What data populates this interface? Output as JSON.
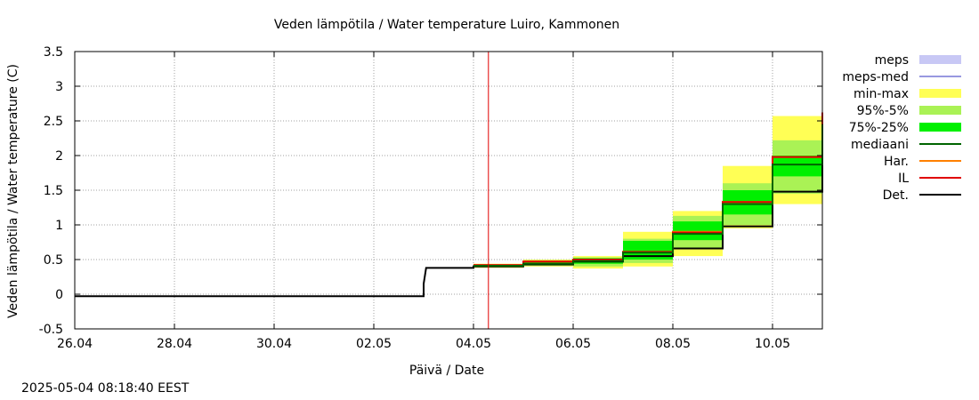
{
  "chart_data": {
    "type": "line",
    "title": "Veden lämpötila / Water temperature Luiro, Kammonen",
    "xlabel": "Päivä / Date",
    "ylabel": "Veden lämpötila / Water temperature (C)",
    "x_unit": "days since 26.04",
    "xlim": [
      0,
      15
    ],
    "ylim": [
      -0.5,
      3.5
    ],
    "grid": true,
    "legend_position": "right",
    "x_ticks": [
      {
        "value": 0,
        "label": "26.04"
      },
      {
        "value": 2,
        "label": "28.04"
      },
      {
        "value": 4,
        "label": "30.04"
      },
      {
        "value": 6,
        "label": "02.05"
      },
      {
        "value": 8,
        "label": "04.05"
      },
      {
        "value": 10,
        "label": "06.05"
      },
      {
        "value": 12,
        "label": "08.05"
      },
      {
        "value": 14,
        "label": "10.05"
      }
    ],
    "y_ticks": [
      {
        "value": -0.5,
        "label": "-0.5"
      },
      {
        "value": 0,
        "label": "0"
      },
      {
        "value": 0.5,
        "label": "0.5"
      },
      {
        "value": 1,
        "label": "1"
      },
      {
        "value": 1.5,
        "label": "1.5"
      },
      {
        "value": 2,
        "label": "2"
      },
      {
        "value": 2.5,
        "label": "2.5"
      },
      {
        "value": 3,
        "label": "3"
      },
      {
        "value": 3.5,
        "label": "3.5"
      }
    ],
    "now_marker": 8.3,
    "series": [
      {
        "name": "Det.",
        "color": "#000000",
        "width": 2,
        "type": "line",
        "points": [
          [
            0,
            -0.03
          ],
          [
            7,
            -0.03
          ],
          [
            7,
            0.15
          ],
          [
            7.05,
            0.38
          ],
          [
            8,
            0.38
          ],
          [
            8,
            0.4
          ],
          [
            9,
            0.4
          ],
          [
            9,
            0.43
          ],
          [
            10,
            0.43
          ],
          [
            10,
            0.47
          ],
          [
            11,
            0.47
          ],
          [
            11,
            0.55
          ],
          [
            12,
            0.55
          ],
          [
            12,
            0.66
          ],
          [
            13,
            0.66
          ],
          [
            13,
            0.98
          ],
          [
            14,
            0.98
          ],
          [
            14,
            1.48
          ],
          [
            15,
            1.48
          ],
          [
            15,
            2.0
          ]
        ]
      },
      {
        "name": "Har.",
        "color": "#ff8000",
        "width": 2,
        "type": "line",
        "points": [
          [
            8,
            0.42
          ],
          [
            9,
            0.42
          ],
          [
            9,
            0.47
          ],
          [
            10,
            0.47
          ],
          [
            10,
            0.5
          ],
          [
            11,
            0.5
          ],
          [
            11,
            0.61
          ],
          [
            12,
            0.61
          ],
          [
            12,
            0.9
          ],
          [
            13,
            0.9
          ],
          [
            13,
            1.33
          ],
          [
            14,
            1.33
          ],
          [
            14,
            1.98
          ],
          [
            15,
            1.98
          ],
          [
            15,
            2.62
          ]
        ]
      },
      {
        "name": "IL",
        "color": "#e00000",
        "width": 2,
        "type": "line",
        "points": [
          [
            8,
            0.42
          ],
          [
            9,
            0.42
          ],
          [
            9,
            0.47
          ],
          [
            10,
            0.47
          ],
          [
            10,
            0.5
          ],
          [
            11,
            0.5
          ],
          [
            11,
            0.61
          ],
          [
            12,
            0.61
          ],
          [
            12,
            0.89
          ],
          [
            13,
            0.89
          ],
          [
            13,
            1.33
          ],
          [
            14,
            1.33
          ],
          [
            14,
            1.98
          ],
          [
            15,
            1.98
          ],
          [
            15,
            2.62
          ]
        ]
      },
      {
        "name": "mediaani",
        "color": "#006400",
        "width": 2,
        "type": "line",
        "points": [
          [
            8,
            0.41
          ],
          [
            9,
            0.41
          ],
          [
            9,
            0.44
          ],
          [
            10,
            0.44
          ],
          [
            10,
            0.48
          ],
          [
            11,
            0.48
          ],
          [
            11,
            0.6
          ],
          [
            12,
            0.6
          ],
          [
            12,
            0.87
          ],
          [
            13,
            0.87
          ],
          [
            13,
            1.3
          ],
          [
            14,
            1.3
          ],
          [
            14,
            1.87
          ],
          [
            15,
            1.87
          ],
          [
            15,
            2.45
          ]
        ]
      },
      {
        "name": "meps-med",
        "color": "#3030c0",
        "width": 1,
        "type": "line",
        "points": []
      },
      {
        "name": "meps",
        "color": "#c8c8f5",
        "type": "band",
        "bands": []
      },
      {
        "name": "min-max",
        "color": "#ffff55",
        "type": "band",
        "bands": [
          [
            8,
            9,
            0.38,
            0.44
          ],
          [
            9,
            10,
            0.4,
            0.5
          ],
          [
            10,
            11,
            0.37,
            0.55
          ],
          [
            11,
            12,
            0.4,
            0.9
          ],
          [
            12,
            13,
            0.55,
            1.2
          ],
          [
            13,
            14,
            0.95,
            1.85
          ],
          [
            14,
            15,
            1.3,
            2.57
          ]
        ]
      },
      {
        "name": "95%-5%",
        "color": "#aaf255",
        "type": "band",
        "bands": [
          [
            8,
            9,
            0.39,
            0.43
          ],
          [
            9,
            10,
            0.41,
            0.49
          ],
          [
            10,
            11,
            0.4,
            0.53
          ],
          [
            11,
            12,
            0.45,
            0.8
          ],
          [
            12,
            13,
            0.65,
            1.13
          ],
          [
            13,
            14,
            1.0,
            1.6
          ],
          [
            14,
            15,
            1.45,
            2.22
          ]
        ]
      },
      {
        "name": "75%-25%",
        "color": "#00f000",
        "type": "band",
        "bands": [
          [
            8,
            9,
            0.4,
            0.42
          ],
          [
            9,
            10,
            0.42,
            0.47
          ],
          [
            10,
            11,
            0.44,
            0.52
          ],
          [
            11,
            12,
            0.5,
            0.77
          ],
          [
            12,
            13,
            0.78,
            1.05
          ],
          [
            13,
            14,
            1.15,
            1.5
          ],
          [
            14,
            15,
            1.7,
            2.0
          ]
        ]
      }
    ],
    "legend": [
      {
        "label": "meps",
        "color": "#c8c8f5",
        "kind": "band"
      },
      {
        "label": "meps-med",
        "color": "#3030c0",
        "kind": "line"
      },
      {
        "label": "min-max",
        "color": "#ffff55",
        "kind": "band"
      },
      {
        "label": "95%-5%",
        "color": "#aaf255",
        "kind": "band"
      },
      {
        "label": "75%-25%",
        "color": "#00f000",
        "kind": "band"
      },
      {
        "label": "mediaani",
        "color": "#006400",
        "kind": "line"
      },
      {
        "label": "Har.",
        "color": "#ff8000",
        "kind": "line"
      },
      {
        "label": "IL",
        "color": "#e00000",
        "kind": "line"
      },
      {
        "label": "Det.",
        "color": "#000000",
        "kind": "line"
      }
    ]
  },
  "footer": {
    "timestamp": "2025-05-04 08:18:40 EEST"
  }
}
